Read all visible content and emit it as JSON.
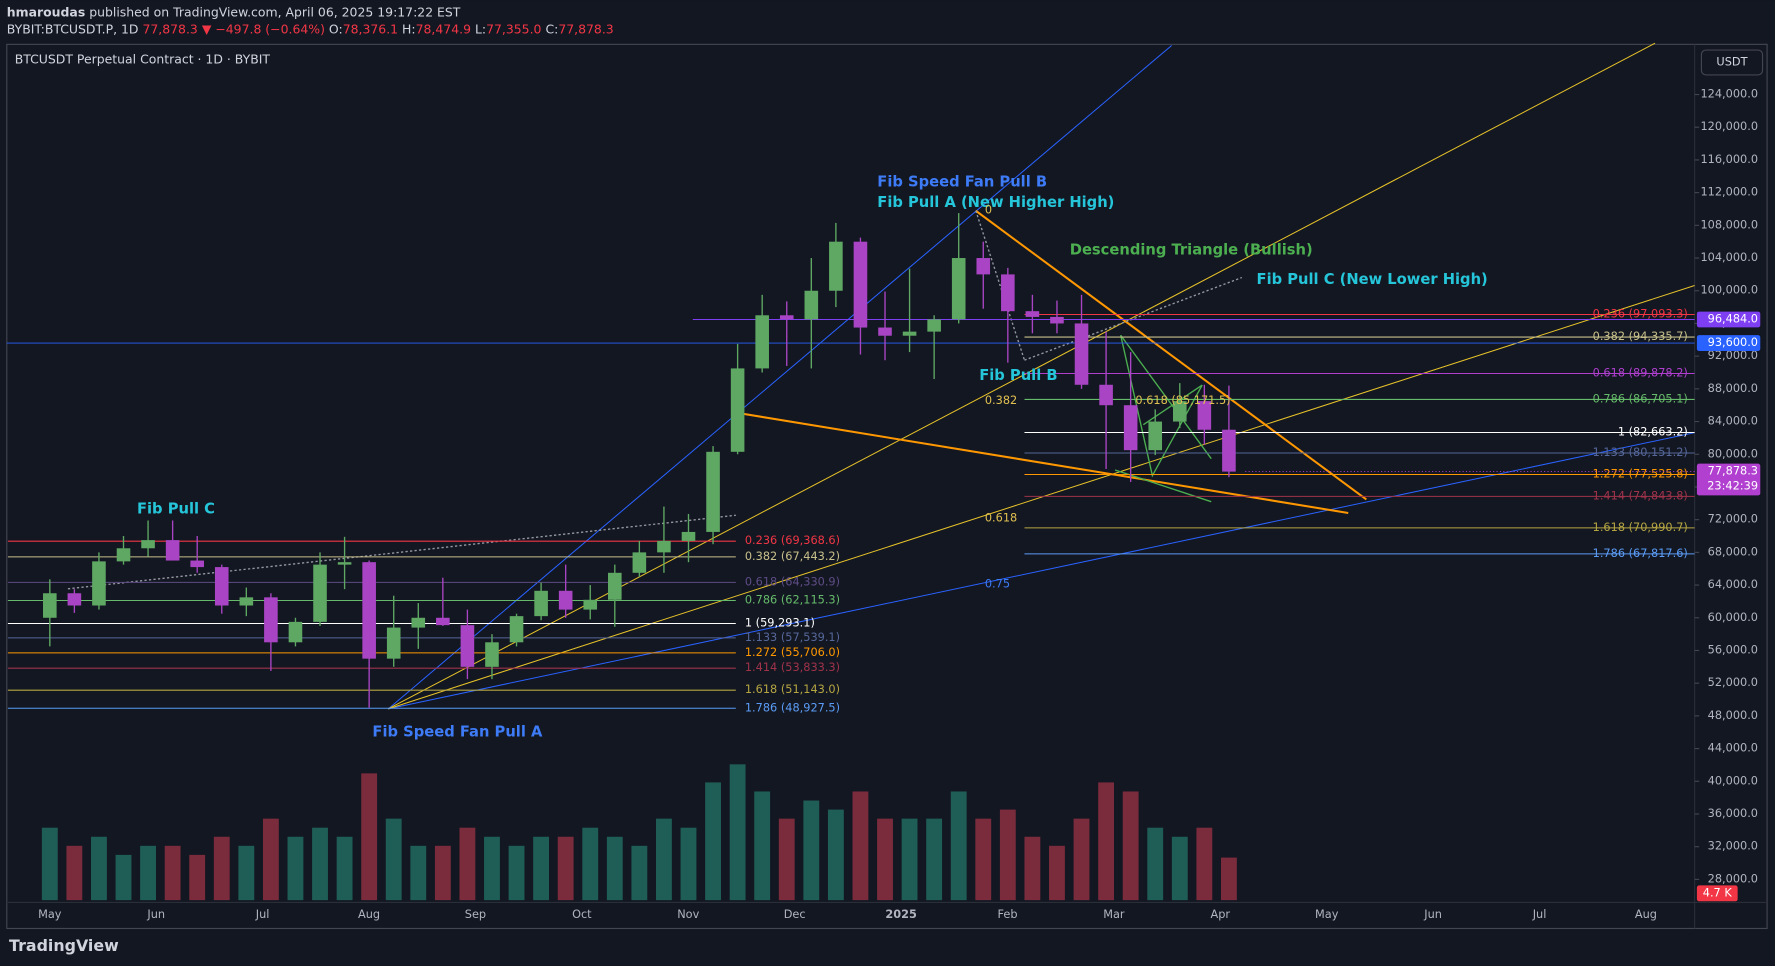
{
  "header": {
    "author": "hmaroudas",
    "published": "published on TradingView.com, April 06, 2025 19:17:22 EST"
  },
  "symbol_line": {
    "symbol": "BYBIT:BTCUSDT.P, 1D",
    "last": "77,878.3",
    "change": "▼ −497.8 (−0.64%)",
    "ohlc": [
      {
        "label": "O:",
        "value": "78,376.1"
      },
      {
        "label": "H:",
        "value": "78,474.9"
      },
      {
        "label": "L:",
        "value": "77,355.0"
      },
      {
        "label": "C:",
        "value": "77,878.3"
      }
    ]
  },
  "footer": {
    "logo": "TradingView"
  },
  "chart_data": {
    "type": "candlestick",
    "title": "BTCUSDT Perpetual Contract · 1D · BYBIT",
    "currency": "USDT",
    "categories": [
      "May",
      "Jun",
      "Jul",
      "Aug",
      "Sep",
      "Oct",
      "Nov",
      "Dec",
      "2025",
      "Feb",
      "Mar",
      "Apr",
      "May",
      "Jun",
      "Jul",
      "Aug"
    ],
    "up_color": "#5fa863",
    "down_color": "#a945c4",
    "candles": {
      "open": [
        60000,
        63000,
        61500,
        66900,
        68500,
        69500,
        67000,
        66200,
        61500,
        62500,
        57000,
        59500,
        66500,
        66800,
        55000,
        58800,
        60000,
        59100,
        54000,
        57000,
        60200,
        63300,
        61000,
        62200,
        65500,
        68000,
        69400,
        70500,
        80300,
        90500,
        97000,
        96500,
        100000,
        106000,
        95500,
        94500,
        95000,
        96500,
        104000,
        102000,
        97500,
        96800,
        96000,
        88500,
        86000,
        80500,
        84000,
        86500,
        83000
      ],
      "high": [
        64700,
        63500,
        68000,
        70000,
        71900,
        71900,
        70000,
        66500,
        63700,
        63000,
        60000,
        68000,
        69900,
        67000,
        62700,
        61800,
        64900,
        61000,
        58000,
        60500,
        64300,
        66500,
        64000,
        66500,
        69400,
        73600,
        72700,
        81000,
        93500,
        99500,
        98700,
        104000,
        108300,
        106500,
        99900,
        102700,
        97000,
        109500,
        106000,
        102800,
        99500,
        98800,
        99500,
        95000,
        92500,
        85500,
        88700,
        88500,
        88400
      ],
      "low": [
        56500,
        60600,
        61000,
        66500,
        67500,
        67000,
        65500,
        60500,
        60200,
        53500,
        56500,
        59000,
        63500,
        49000,
        54000,
        56200,
        59000,
        52500,
        52500,
        56500,
        59700,
        60000,
        59800,
        58900,
        65000,
        65500,
        66800,
        69000,
        80000,
        90000,
        90800,
        90500,
        98000,
        92200,
        91500,
        92500,
        89200,
        96000,
        97800,
        91200,
        94800,
        94800,
        88000,
        78200,
        76600,
        79900,
        83200,
        81200,
        77200
      ],
      "close": [
        63000,
        61500,
        66900,
        68500,
        69500,
        67000,
        66200,
        61500,
        62500,
        57000,
        59500,
        66500,
        66800,
        55000,
        58800,
        60000,
        59100,
        54000,
        57000,
        60200,
        63300,
        61000,
        62200,
        65500,
        68000,
        69400,
        70500,
        80300,
        90500,
        97000,
        96500,
        100000,
        106000,
        95500,
        94500,
        95000,
        96500,
        104000,
        102000,
        97500,
        96800,
        96000,
        88500,
        86000,
        80500,
        84000,
        86500,
        83000,
        77878.3
      ]
    },
    "volume": [
      8,
      6,
      7,
      5,
      6,
      6,
      5,
      7,
      6,
      9,
      7,
      8,
      7,
      14,
      9,
      6,
      6,
      8,
      7,
      6,
      7,
      7,
      8,
      7,
      6,
      9,
      8,
      13,
      15,
      12,
      9,
      11,
      10,
      12,
      9,
      9,
      9,
      12,
      9,
      10,
      7,
      6,
      9,
      13,
      12,
      8,
      7,
      8,
      4.7
    ],
    "volume_tag": {
      "value": 4.7,
      "label": "4.7 K",
      "color": "#f23645"
    },
    "ylim": [
      22000,
      130000
    ],
    "yticks": [
      {
        "value": 124000,
        "label": "124,000.0"
      },
      {
        "value": 120000,
        "label": "120,000.0"
      },
      {
        "value": 116000,
        "label": "116,000.0"
      },
      {
        "value": 112000,
        "label": "112,000.0"
      },
      {
        "value": 108000,
        "label": "108,000.0"
      },
      {
        "value": 104000,
        "label": "104,000.0"
      },
      {
        "value": 100000,
        "label": "100,000.0"
      },
      {
        "value": 96000,
        "label": "96,000.0"
      },
      {
        "value": 92000,
        "label": "92,000.0"
      },
      {
        "value": 88000,
        "label": "88,000.0"
      },
      {
        "value": 84000,
        "label": "84,000.0"
      },
      {
        "value": 80000,
        "label": "80,000.0"
      },
      {
        "value": 76000,
        "label": "76,000.0"
      },
      {
        "value": 72000,
        "label": "72,000.0"
      },
      {
        "value": 68000,
        "label": "68,000.0"
      },
      {
        "value": 64000,
        "label": "64,000.0"
      },
      {
        "value": 60000,
        "label": "60,000.0"
      },
      {
        "value": 56000,
        "label": "56,000.0"
      },
      {
        "value": 52000,
        "label": "52,000.0"
      },
      {
        "value": 48000,
        "label": "48,000.0"
      },
      {
        "value": 44000,
        "label": "44,000.0"
      },
      {
        "value": 40000,
        "label": "40,000.0"
      },
      {
        "value": 36000,
        "label": "36,000.0"
      },
      {
        "value": 32000,
        "label": "32,000.0"
      },
      {
        "value": 28000,
        "label": "28,000.0"
      }
    ],
    "price_tags": [
      {
        "value": 96484.0,
        "label": "96,484.0",
        "color": "#7e3ff2"
      },
      {
        "value": 93600.0,
        "label": "93,600.0",
        "color": "#2962ff"
      },
      {
        "value": 77878.3,
        "label": "77,878.3",
        "color": "#b13fd0",
        "countdown": "23:42:39"
      }
    ],
    "fib_left": [
      {
        "value": 69368.6,
        "label": "0.236 (69,368.6)",
        "color": "#f23645"
      },
      {
        "value": 67443.2,
        "label": "0.382 (67,443.2)",
        "color": "#c8c08a"
      },
      {
        "value": 64330.9,
        "label": "0.618 (64,330.9)",
        "color": "#5e4c86"
      },
      {
        "value": 62115.3,
        "label": "0.786 (62,115.3)",
        "color": "#66bb6a"
      },
      {
        "value": 59293.1,
        "label": "1 (59,293.1)",
        "color": "#ffffff"
      },
      {
        "value": 57539.1,
        "label": "1.133 (57,539.1)",
        "color": "#56679a"
      },
      {
        "value": 55706.0,
        "label": "1.272 (55,706.0)",
        "color": "#ff9800"
      },
      {
        "value": 53833.3,
        "label": "1.414 (53,833.3)",
        "color": "#a0334a"
      },
      {
        "value": 51143.0,
        "label": "1.618 (51,143.0)",
        "color": "#b5a642"
      },
      {
        "value": 48927.5,
        "label": "1.786 (48,927.5)",
        "color": "#5b9cf6"
      }
    ],
    "fib_right": [
      {
        "value": 97093.3,
        "label": "0.236 (97,093.3)",
        "color": "#f23645"
      },
      {
        "value": 94335.7,
        "label": "0.382 (94,335.7)",
        "color": "#c8c08a"
      },
      {
        "value": 89878.2,
        "label": "0.618 (89,878.2)",
        "color": "#b03fcf"
      },
      {
        "value": 86705.1,
        "label": "0.786 (86,705.1)",
        "color": "#66bb6a"
      },
      {
        "value": 82663.2,
        "label": "1 (82,663.2)",
        "color": "#ffffff"
      },
      {
        "value": 80151.2,
        "label": "1.133 (80,151.2)",
        "color": "#56679a"
      },
      {
        "value": 77525.8,
        "label": "1.272 (77,525.8)",
        "color": "#ff9800"
      },
      {
        "value": 74843.8,
        "label": "1.414 (74,843.8)",
        "color": "#a0334a"
      },
      {
        "value": 70990.7,
        "label": "1.618 (70,990.7)",
        "color": "#b5a642"
      },
      {
        "value": 67817.6,
        "label": "1.786 (67,817.6)",
        "color": "#5b9cf6"
      }
    ],
    "annotations": [
      {
        "text": "Fib Speed Fan Pull B",
        "color": "#3d7bf7"
      },
      {
        "text": "Fib Pull A (New Higher High)",
        "color": "#26c6da"
      },
      {
        "text": "Descending Triangle (Bullish)",
        "color": "#4caf50"
      },
      {
        "text": "Fib Pull C (New Lower High)",
        "color": "#26c6da"
      },
      {
        "text": "Fib Pull B",
        "color": "#26c6da"
      },
      {
        "text": "Fib Pull C",
        "color": "#26c6da"
      },
      {
        "text": "Fib Speed Fan Pull A",
        "color": "#3d7bf7"
      },
      {
        "text": "0",
        "color": "#e0c050"
      },
      {
        "text": "0.382",
        "color": "#e0c050"
      },
      {
        "text": "0.618",
        "color": "#e0c050"
      },
      {
        "text": "0.75",
        "color": "#3d7bf7"
      },
      {
        "text": "0.618 (85,171.5)",
        "color": "#e0c050"
      }
    ]
  }
}
